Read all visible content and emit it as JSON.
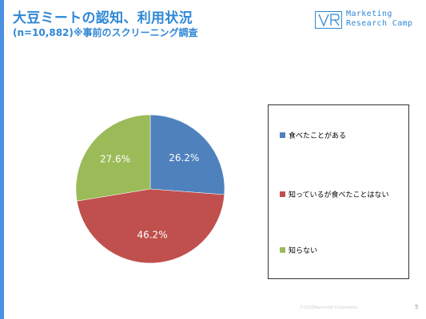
{
  "header": {
    "title": "大豆ミートの認知、利用状況",
    "subtitle": "(n=10,882)※事前のスクリーニング調査"
  },
  "logo": {
    "line1": "Marketing",
    "line2": "Research Camp"
  },
  "chart_data": {
    "type": "pie",
    "categories": [
      "食べたことがある",
      "知っているが食べたことはない",
      "知らない"
    ],
    "values": [
      26.2,
      46.2,
      27.6
    ],
    "labels": [
      "26.2%",
      "46.2%",
      "27.6%"
    ],
    "colors": [
      "#4f81bd",
      "#c0504d",
      "#9bbb59"
    ],
    "legend_position": "right",
    "start_angle_deg": 0,
    "direction": "clockwise"
  },
  "legend": {
    "items": [
      {
        "label": "食べたことがある",
        "color": "#4f81bd"
      },
      {
        "label": "知っているが食べたことはない",
        "color": "#c0504d"
      },
      {
        "label": "知らない",
        "color": "#9bbb59"
      }
    ]
  },
  "footer": {
    "copyright": "©2020Macromill Corporation",
    "page_number": "5"
  }
}
